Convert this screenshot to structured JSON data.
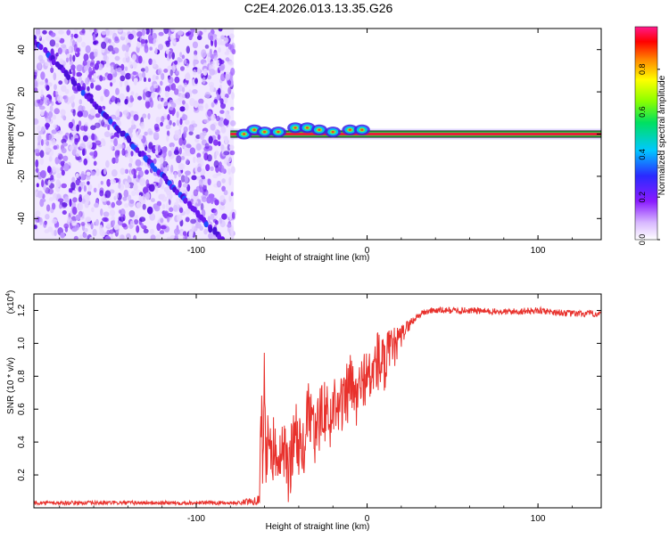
{
  "title": "C2E4.2026.013.13.35.G26",
  "chart_data": [
    {
      "type": "heatmap",
      "name": "spectrogram",
      "xlabel": "Height of straight line (km)",
      "ylabel": "Frequency (Hz)",
      "xlim": [
        -195,
        137
      ],
      "ylim": [
        -50,
        50
      ],
      "xticks": [
        -100,
        0,
        100
      ],
      "yticks": [
        -40,
        -20,
        0,
        20,
        40
      ],
      "colorbar": {
        "label": "Normalized spectral amplitude",
        "range": [
          0,
          1
        ],
        "ticks": [
          0.0,
          0.2,
          0.4,
          0.6,
          0.8
        ],
        "tick_labels": [
          "0.0",
          "0.2",
          "0.4",
          "0.6",
          "0.8"
        ]
      },
      "noise_region": {
        "x": [
          -195,
          -78
        ],
        "y": [
          -50,
          50
        ]
      },
      "drifting_line": {
        "x": [
          -195,
          -85
        ],
        "y": [
          45,
          -50
        ]
      },
      "carrier_line": {
        "x": [
          -80,
          137
        ],
        "y": 0
      },
      "carrier_blobs": [
        {
          "x": -72,
          "y": 0
        },
        {
          "x": -66,
          "y": 2
        },
        {
          "x": -60,
          "y": 1
        },
        {
          "x": -52,
          "y": 1
        },
        {
          "x": -42,
          "y": 3
        },
        {
          "x": -35,
          "y": 3
        },
        {
          "x": -28,
          "y": 2
        },
        {
          "x": -20,
          "y": 1
        },
        {
          "x": -10,
          "y": 2
        },
        {
          "x": -3,
          "y": 2
        }
      ]
    },
    {
      "type": "line",
      "name": "snr",
      "xlabel": "Height of straight line (km)",
      "ylabel": "SNR (10 * v/v)",
      "ylabel_scale": "(x10^4)",
      "xlim": [
        -195,
        137
      ],
      "ylim": [
        0,
        1.3
      ],
      "xticks": [
        -100,
        0,
        100
      ],
      "yticks": [
        0.2,
        0.4,
        0.6,
        0.8,
        1.0,
        1.2
      ],
      "ytick_labels": [
        "0.2",
        "0.4",
        "0.6",
        "0.8",
        "1.0",
        "1.2"
      ],
      "color": "#e8312c",
      "series": [
        {
          "name": "SNR",
          "x": [
            -195,
            -75,
            -63,
            -62,
            -61,
            -60,
            -59,
            -58,
            -56,
            -54,
            -52,
            -50,
            -46,
            -42,
            -38,
            -34,
            -30,
            -26,
            -22,
            -18,
            -14,
            -10,
            -6,
            -2,
            2,
            6,
            10,
            14,
            18,
            22,
            26,
            30,
            34,
            38,
            45,
            60,
            80,
            100,
            120,
            137
          ],
          "y": [
            0.03,
            0.03,
            0.05,
            0.6,
            0.3,
            0.85,
            0.2,
            0.5,
            0.25,
            0.45,
            0.15,
            0.4,
            0.2,
            0.5,
            0.3,
            0.6,
            0.4,
            0.65,
            0.5,
            0.7,
            0.6,
            0.75,
            0.65,
            0.8,
            0.78,
            0.9,
            0.85,
            0.95,
            1.0,
            1.08,
            1.13,
            1.17,
            1.19,
            1.2,
            1.2,
            1.2,
            1.19,
            1.2,
            1.18,
            1.18
          ],
          "amp": [
            0.012,
            0.012,
            0.03,
            0.25,
            0.2,
            0.25,
            0.2,
            0.2,
            0.2,
            0.2,
            0.15,
            0.2,
            0.2,
            0.2,
            0.2,
            0.2,
            0.2,
            0.2,
            0.2,
            0.2,
            0.2,
            0.2,
            0.18,
            0.18,
            0.18,
            0.2,
            0.2,
            0.15,
            0.1,
            0.05,
            0.03,
            0.02,
            0.02,
            0.02,
            0.02,
            0.02,
            0.02,
            0.02,
            0.02,
            0.02
          ]
        }
      ]
    }
  ]
}
